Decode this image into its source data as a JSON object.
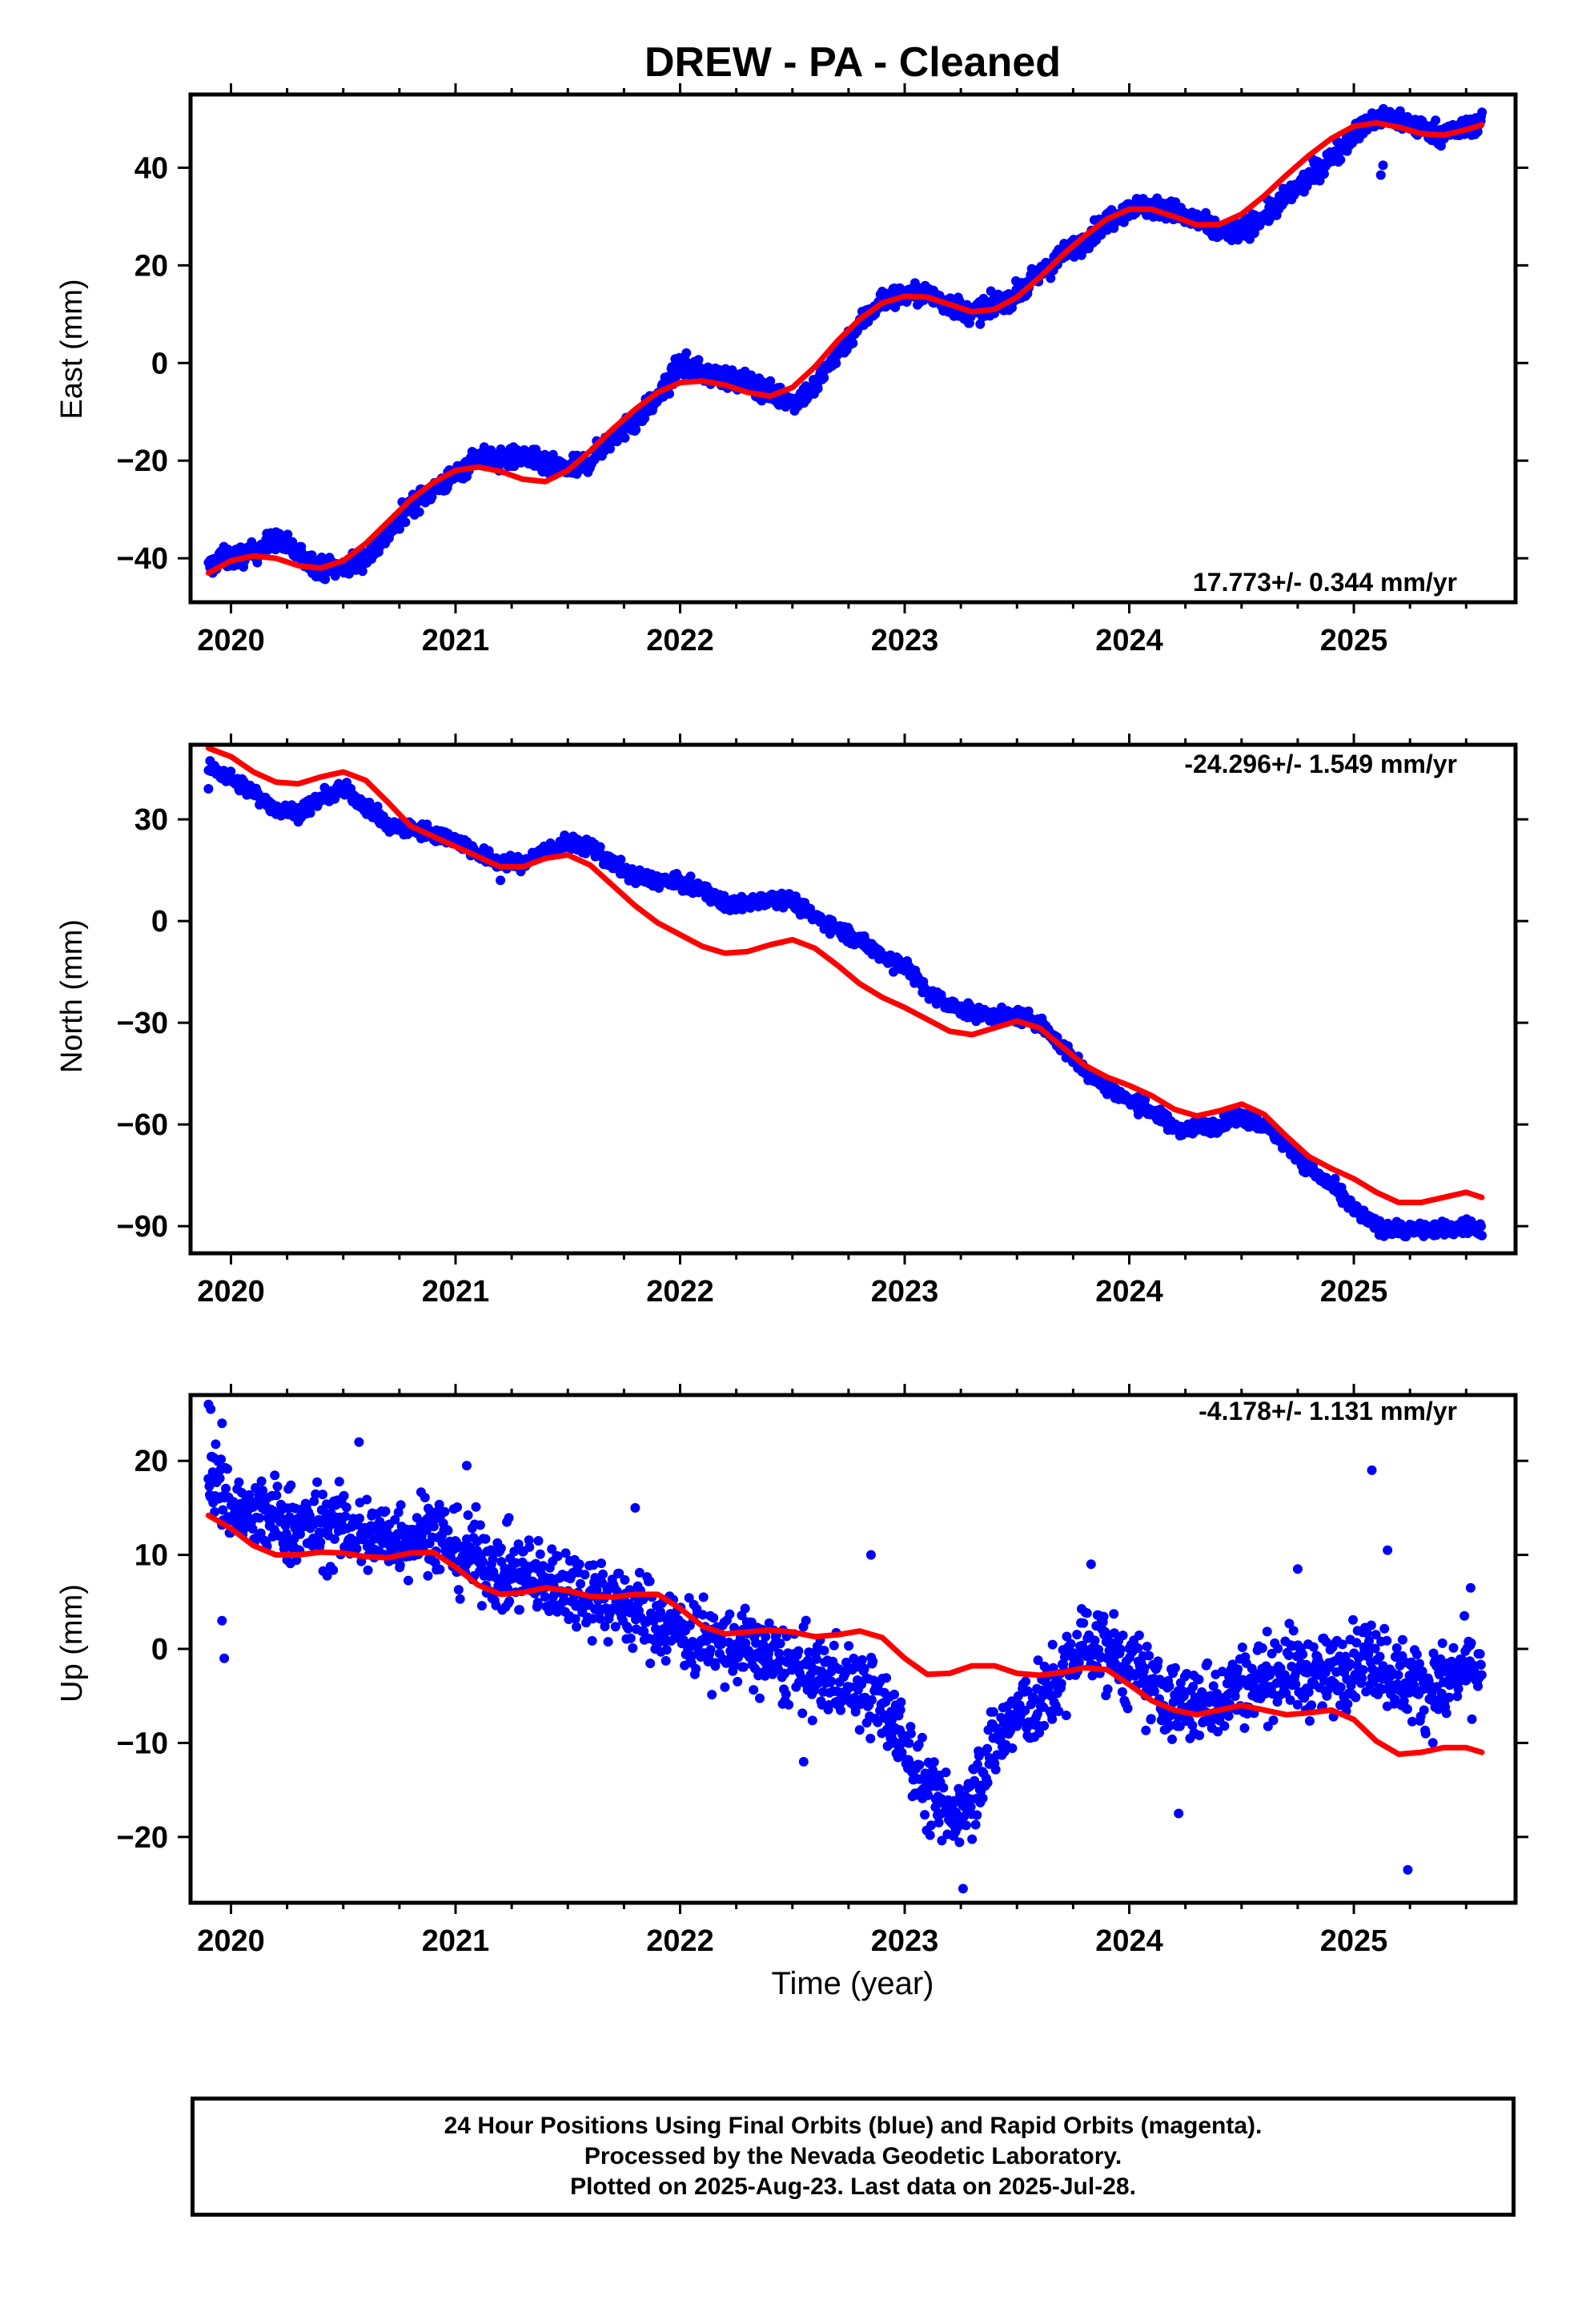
{
  "colors": {
    "final_orbits": "#0000ff",
    "model_fit": "#ff0000",
    "frame": "#000000"
  },
  "title": "DREW  - PA - Cleaned",
  "footer": {
    "line1": "24 Hour Positions Using Final Orbits (blue) and Rapid Orbits (magenta).",
    "line2": "Processed by the Nevada Geodetic Laboratory.",
    "line3": "Plotted on 2025-Aug-23. Last data on 2025-Jul-28."
  },
  "chart_data": [
    {
      "type": "scatter",
      "component": "east",
      "ylabel": "East (mm)",
      "xlabel": "",
      "rate": "17.773+/- 0.344 mm/yr",
      "rate_position": "bottom-right",
      "xlim": [
        2019.82,
        2025.72
      ],
      "ylim": [
        -49,
        55
      ],
      "xticks": [
        2020,
        2021,
        2022,
        2023,
        2024,
        2025
      ],
      "yticks": [
        -40,
        -20,
        0,
        20,
        40
      ],
      "observations": {
        "name": "Final Orbits",
        "x": [
          2019.9,
          2019.95,
          2020.0,
          2020.1,
          2020.2,
          2020.3,
          2020.4,
          2020.5,
          2020.6,
          2020.7,
          2020.8,
          2020.9,
          2021.0,
          2021.1,
          2021.2,
          2021.3,
          2021.4,
          2021.5,
          2021.6,
          2021.7,
          2021.8,
          2021.9,
          2021.95,
          2022.0,
          2022.1,
          2022.2,
          2022.3,
          2022.4,
          2022.5,
          2022.6,
          2022.7,
          2022.8,
          2022.9,
          2023.0,
          2023.1,
          2023.2,
          2023.3,
          2023.4,
          2023.5,
          2023.6,
          2023.7,
          2023.8,
          2023.9,
          2024.0,
          2024.1,
          2024.2,
          2024.3,
          2024.4,
          2024.5,
          2024.6,
          2024.7,
          2024.8,
          2024.9,
          2025.0,
          2025.1,
          2025.2,
          2025.3,
          2025.4,
          2025.5,
          2025.57
        ],
        "y": [
          -42,
          -40,
          -40,
          -39,
          -36,
          -39,
          -42,
          -42,
          -40,
          -35,
          -29,
          -26,
          -23,
          -19,
          -20,
          -19,
          -21,
          -22,
          -20,
          -15,
          -12,
          -7,
          -4,
          0,
          -2,
          -3,
          -4,
          -6,
          -8,
          -5,
          2,
          8,
          13,
          14,
          14,
          12,
          10,
          12,
          14,
          18,
          22,
          25,
          29,
          32,
          32,
          31,
          29,
          27,
          27,
          30,
          34,
          38,
          42,
          47,
          50,
          50,
          48,
          47,
          48,
          50
        ],
        "spread": 2.5,
        "outliers": [
          [
            2025.12,
            38.5
          ],
          [
            2025.13,
            40.5
          ]
        ]
      },
      "model": {
        "name": "Model fit",
        "x": [
          2019.9,
          2020.0,
          2020.1,
          2020.2,
          2020.3,
          2020.4,
          2020.5,
          2020.6,
          2020.7,
          2020.8,
          2020.9,
          2021.0,
          2021.1,
          2021.2,
          2021.3,
          2021.4,
          2021.5,
          2021.6,
          2021.7,
          2021.8,
          2021.9,
          2022.0,
          2022.1,
          2022.2,
          2022.3,
          2022.4,
          2022.5,
          2022.6,
          2022.7,
          2022.8,
          2022.9,
          2023.0,
          2023.1,
          2023.2,
          2023.3,
          2023.4,
          2023.5,
          2023.6,
          2023.7,
          2023.8,
          2023.9,
          2024.0,
          2024.1,
          2024.2,
          2024.3,
          2024.4,
          2024.5,
          2024.6,
          2024.7,
          2024.8,
          2024.9,
          2025.0,
          2025.1,
          2025.2,
          2025.3,
          2025.4,
          2025.5,
          2025.57
        ],
        "y": [
          -43,
          -40.5,
          -39.5,
          -40,
          -41.5,
          -42,
          -40.5,
          -37,
          -32.5,
          -28,
          -24.5,
          -22,
          -21.3,
          -22.2,
          -23.8,
          -24.3,
          -22,
          -18,
          -13.5,
          -9.5,
          -6,
          -4,
          -3.7,
          -4.5,
          -6,
          -6.8,
          -5,
          -0.8,
          4.5,
          9,
          12.3,
          13.7,
          13.5,
          12,
          10.5,
          11,
          13.5,
          17.5,
          22,
          26,
          29.5,
          31.5,
          31.5,
          30,
          28.3,
          28.4,
          30.5,
          34.2,
          38.5,
          42.5,
          46,
          48.5,
          49.2,
          48.3,
          47,
          46.7,
          47.8,
          48.8
        ]
      }
    },
    {
      "type": "scatter",
      "component": "north",
      "ylabel": "North (mm)",
      "xlabel": "",
      "rate": "-24.296+/- 1.549 mm/yr",
      "rate_position": "top-right",
      "xlim": [
        2019.82,
        2025.72
      ],
      "ylim": [
        -98,
        52
      ],
      "xticks": [
        2020,
        2021,
        2022,
        2023,
        2024,
        2025
      ],
      "yticks": [
        -90,
        -60,
        -30,
        0,
        30
      ],
      "observations": {
        "name": "Final Orbits",
        "x": [
          2019.9,
          2019.95,
          2020.0,
          2020.1,
          2020.2,
          2020.3,
          2020.4,
          2020.5,
          2020.6,
          2020.7,
          2020.8,
          2020.9,
          2021.0,
          2021.1,
          2021.2,
          2021.3,
          2021.4,
          2021.5,
          2021.6,
          2021.7,
          2021.8,
          2021.9,
          2022.0,
          2022.1,
          2022.2,
          2022.3,
          2022.4,
          2022.5,
          2022.6,
          2022.7,
          2022.8,
          2022.9,
          2023.0,
          2023.1,
          2023.2,
          2023.3,
          2023.4,
          2023.5,
          2023.6,
          2023.7,
          2023.8,
          2023.9,
          2024.0,
          2024.1,
          2024.2,
          2024.3,
          2024.4,
          2024.5,
          2024.6,
          2024.7,
          2024.8,
          2024.9,
          2025.0,
          2025.1,
          2025.2,
          2025.3,
          2025.4,
          2025.5,
          2025.57
        ],
        "y": [
          45,
          44,
          42,
          38,
          33,
          32,
          36,
          39,
          34,
          28,
          27,
          26,
          24,
          20,
          17,
          17,
          21,
          23,
          22,
          17,
          13,
          12,
          11,
          9,
          5,
          5,
          7,
          6,
          1,
          -2,
          -6,
          -10,
          -13,
          -21,
          -25,
          -27,
          -28,
          -28,
          -30,
          -37,
          -44,
          -49,
          -53,
          -56,
          -61,
          -61,
          -60,
          -58,
          -60,
          -66,
          -73,
          -78,
          -85,
          -90,
          -91,
          -91,
          -91,
          -90,
          -91
        ],
        "spread": 2.5,
        "outliers": [
          [
            2019.9,
            39
          ],
          [
            2021.2,
            12
          ],
          [
            2022.95,
            -15
          ]
        ]
      },
      "model": {
        "name": "Model fit",
        "x": [
          2019.9,
          2020.0,
          2020.1,
          2020.2,
          2020.3,
          2020.4,
          2020.5,
          2020.6,
          2020.7,
          2020.8,
          2020.9,
          2021.0,
          2021.1,
          2021.2,
          2021.3,
          2021.4,
          2021.5,
          2021.6,
          2021.7,
          2021.8,
          2021.9,
          2022.0,
          2022.1,
          2022.2,
          2022.3,
          2022.4,
          2022.5,
          2022.6,
          2022.7,
          2022.8,
          2022.9,
          2023.0,
          2023.1,
          2023.2,
          2023.3,
          2023.4,
          2023.5,
          2023.6,
          2023.7,
          2023.8,
          2023.9,
          2024.0,
          2024.1,
          2024.2,
          2024.3,
          2024.4,
          2024.5,
          2024.6,
          2024.7,
          2024.8,
          2024.9,
          2025.0,
          2025.1,
          2025.2,
          2025.3,
          2025.4,
          2025.5,
          2025.57
        ],
        "y": [
          51,
          48.5,
          44,
          41,
          40.5,
          42.5,
          44,
          41.5,
          35,
          28,
          25,
          22,
          19,
          16,
          16,
          18.5,
          19.5,
          16.5,
          10.5,
          4.5,
          -0.5,
          -4,
          -7.5,
          -9.5,
          -9,
          -7,
          -5.5,
          -8,
          -13,
          -18.5,
          -22.5,
          -25.5,
          -29,
          -32.5,
          -33.5,
          -31.5,
          -29.5,
          -31.5,
          -37,
          -42.5,
          -46,
          -48.5,
          -51.5,
          -55.5,
          -57.5,
          -56,
          -54,
          -57,
          -63.5,
          -69.5,
          -73,
          -76,
          -80,
          -83,
          -83,
          -81.5,
          -80,
          -81.5
        ]
      }
    },
    {
      "type": "scatter",
      "component": "up",
      "ylabel": "Up (mm)",
      "xlabel": "Time (year)",
      "rate": "-4.178+/- 1.131 mm/yr",
      "rate_position": "top-right",
      "xlim": [
        2019.82,
        2025.72
      ],
      "ylim": [
        -27,
        27
      ],
      "xticks": [
        2020,
        2021,
        2022,
        2023,
        2024,
        2025
      ],
      "yticks": [
        -20,
        -10,
        0,
        10,
        20
      ],
      "observations": {
        "name": "Final Orbits",
        "x": [
          2019.9,
          2019.95,
          2020.0,
          2020.1,
          2020.2,
          2020.3,
          2020.4,
          2020.5,
          2020.6,
          2020.7,
          2020.8,
          2020.9,
          2021.0,
          2021.1,
          2021.2,
          2021.3,
          2021.4,
          2021.5,
          2021.6,
          2021.7,
          2021.8,
          2021.9,
          2022.0,
          2022.1,
          2022.2,
          2022.3,
          2022.4,
          2022.5,
          2022.6,
          2022.7,
          2022.8,
          2022.9,
          2023.0,
          2023.1,
          2023.2,
          2023.3,
          2023.4,
          2023.5,
          2023.6,
          2023.7,
          2023.8,
          2023.9,
          2024.0,
          2024.1,
          2024.2,
          2024.3,
          2024.4,
          2024.5,
          2024.6,
          2024.7,
          2024.8,
          2024.9,
          2025.0,
          2025.1,
          2025.2,
          2025.3,
          2025.4,
          2025.5,
          2025.57
        ],
        "y": [
          19,
          17,
          15,
          14,
          14,
          13,
          13,
          13,
          12,
          12,
          12,
          13,
          10,
          10,
          8,
          8,
          7,
          7,
          6,
          5,
          4,
          3,
          2,
          1,
          0,
          0,
          -1,
          -2,
          -3,
          -3,
          -4,
          -6,
          -10,
          -15,
          -18,
          -15,
          -10,
          -7,
          -6,
          -3,
          1,
          0,
          -2,
          -4,
          -6,
          -6,
          -5,
          -4,
          -3,
          -2,
          -3,
          -3,
          -1,
          -1,
          -3,
          -4,
          -4,
          -2,
          -2
        ],
        "spread": 5,
        "outliers": [
          [
            2019.9,
            26
          ],
          [
            2019.91,
            25.5
          ],
          [
            2019.96,
            24
          ],
          [
            2019.97,
            -1
          ],
          [
            2019.96,
            3
          ],
          [
            2020.57,
            22
          ],
          [
            2021.8,
            15
          ],
          [
            2022.85,
            10
          ],
          [
            2023.83,
            9
          ],
          [
            2024.75,
            8.5
          ],
          [
            2025.08,
            19
          ],
          [
            2025.15,
            10.5
          ],
          [
            2025.24,
            -23.5
          ],
          [
            2023.26,
            -25.5
          ],
          [
            2024.22,
            -17.5
          ],
          [
            2022.55,
            -12
          ],
          [
            2021.05,
            19.5
          ],
          [
            2025.52,
            6.5
          ]
        ]
      },
      "model": {
        "name": "Model fit",
        "x": [
          2019.9,
          2020.0,
          2020.1,
          2020.2,
          2020.3,
          2020.4,
          2020.5,
          2020.6,
          2020.7,
          2020.8,
          2020.9,
          2021.0,
          2021.1,
          2021.2,
          2021.3,
          2021.4,
          2021.5,
          2021.6,
          2021.7,
          2021.8,
          2021.9,
          2022.0,
          2022.1,
          2022.2,
          2022.3,
          2022.4,
          2022.5,
          2022.6,
          2022.7,
          2022.8,
          2022.9,
          2023.0,
          2023.1,
          2023.2,
          2023.3,
          2023.4,
          2023.5,
          2023.6,
          2023.7,
          2023.8,
          2023.9,
          2024.0,
          2024.1,
          2024.2,
          2024.3,
          2024.4,
          2024.5,
          2024.6,
          2024.7,
          2024.8,
          2024.9,
          2025.0,
          2025.1,
          2025.2,
          2025.3,
          2025.4,
          2025.5,
          2025.57
        ],
        "y": [
          14.2,
          12.8,
          11,
          10,
          10,
          10.3,
          10.2,
          9.8,
          9.7,
          10.2,
          10.3,
          8.7,
          6.8,
          5.8,
          6,
          6.5,
          6.2,
          5.6,
          5.5,
          5.8,
          5.8,
          4.3,
          2.4,
          1.6,
          1.8,
          2,
          1.8,
          1.3,
          1.5,
          1.9,
          1.2,
          -1,
          -2.7,
          -2.6,
          -1.8,
          -1.8,
          -2.6,
          -2.8,
          -2.5,
          -2,
          -2.2,
          -3.8,
          -5.5,
          -6.5,
          -7,
          -6.5,
          -6,
          -6.5,
          -7,
          -6.8,
          -6.5,
          -7.5,
          -9.8,
          -11.2,
          -11,
          -10.5,
          -10.5,
          -11
        ]
      }
    }
  ]
}
